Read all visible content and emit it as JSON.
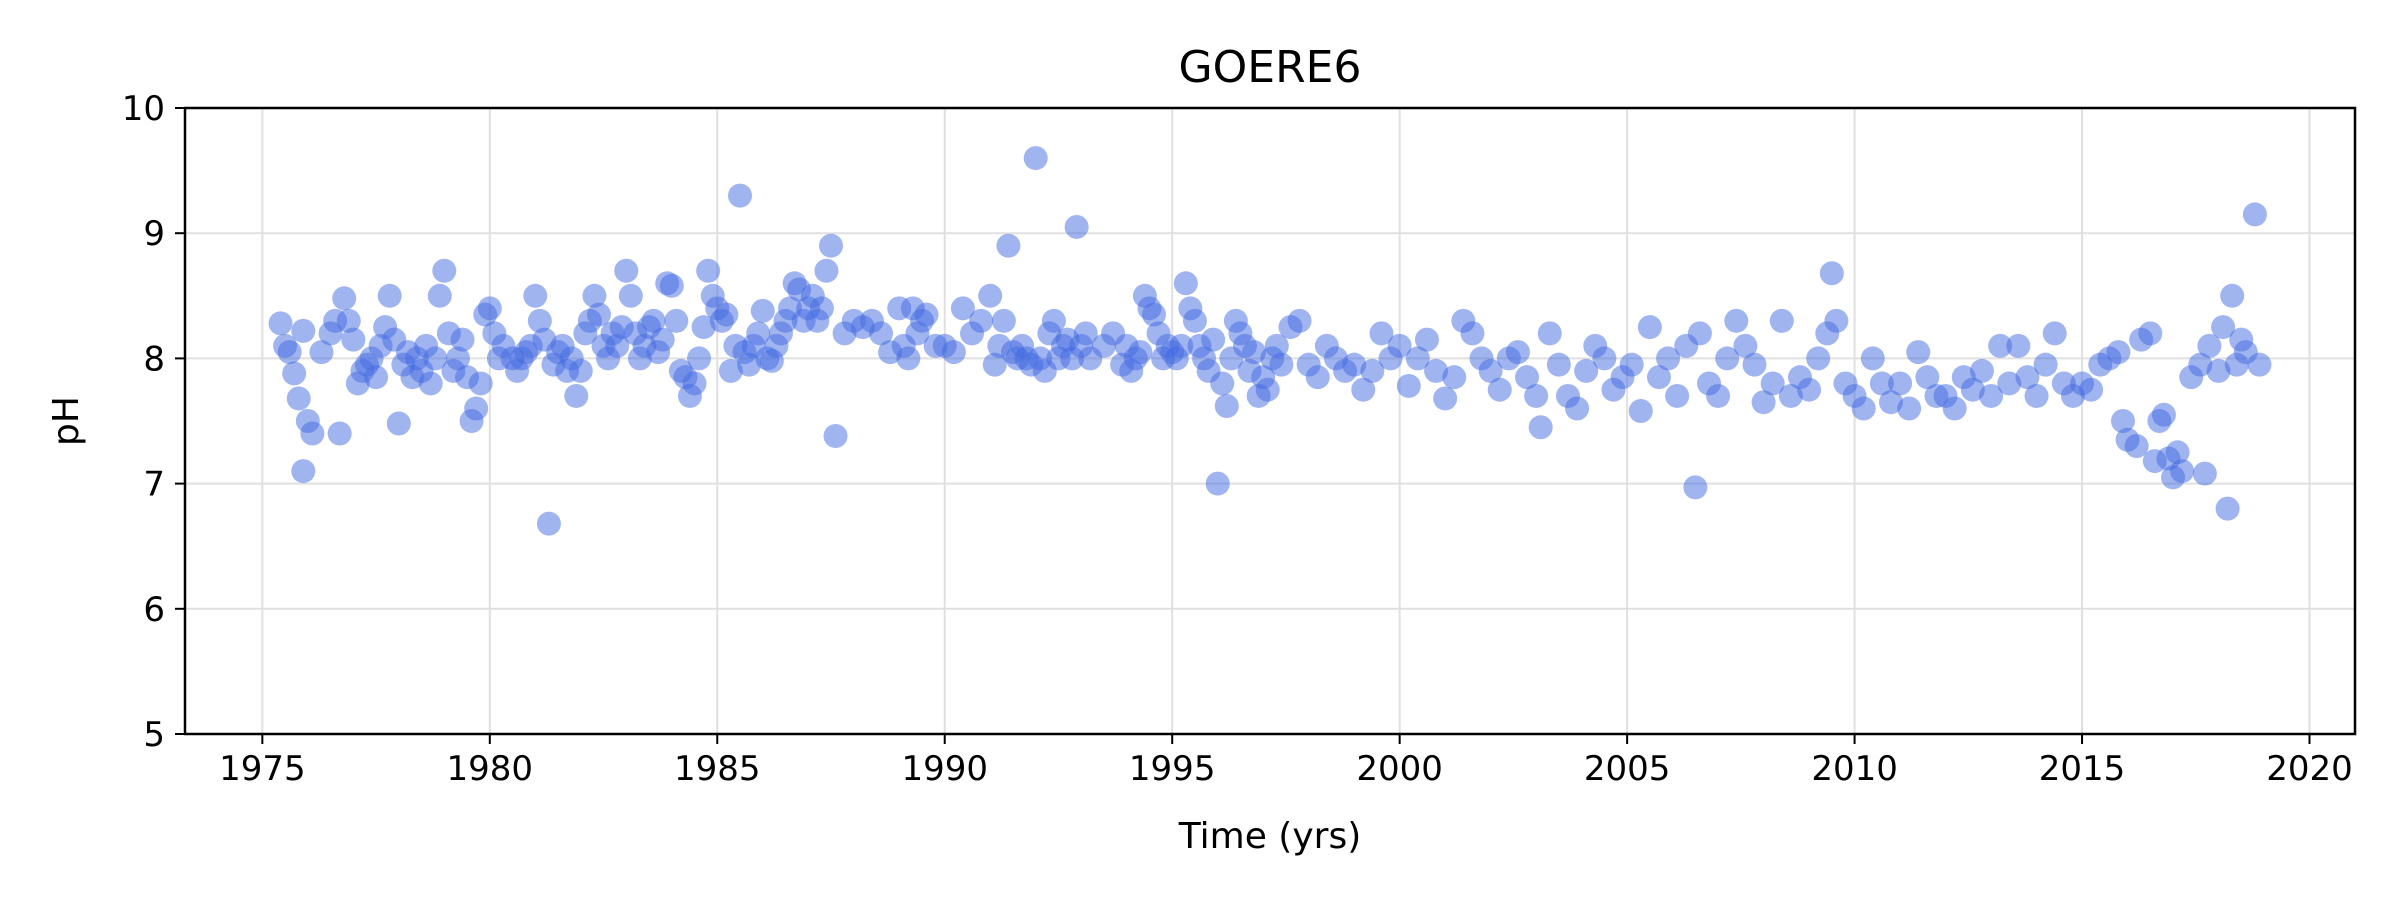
{
  "chart_data": {
    "type": "scatter",
    "title": "GOERE6",
    "xlabel": "Time (yrs)",
    "ylabel": "pH",
    "xlim": [
      1973.3,
      2021.0
    ],
    "ylim": [
      5,
      10
    ],
    "xticks": [
      1975,
      1980,
      1985,
      1990,
      1995,
      2000,
      2005,
      2010,
      2015,
      2020
    ],
    "yticks": [
      5,
      6,
      7,
      8,
      9,
      10
    ],
    "grid": true,
    "marker_color": "#4169e1",
    "marker_opacity": 0.5,
    "points": [
      [
        1975.4,
        8.28
      ],
      [
        1975.5,
        8.1
      ],
      [
        1975.6,
        8.05
      ],
      [
        1975.7,
        7.88
      ],
      [
        1975.8,
        7.68
      ],
      [
        1975.9,
        8.22
      ],
      [
        1976.0,
        7.5
      ],
      [
        1975.9,
        7.1
      ],
      [
        1976.1,
        7.4
      ],
      [
        1976.3,
        8.05
      ],
      [
        1976.5,
        8.2
      ],
      [
        1976.6,
        8.3
      ],
      [
        1976.7,
        7.4
      ],
      [
        1976.8,
        8.48
      ],
      [
        1976.9,
        8.3
      ],
      [
        1977.0,
        8.15
      ],
      [
        1977.1,
        7.8
      ],
      [
        1977.2,
        7.9
      ],
      [
        1977.3,
        7.95
      ],
      [
        1977.4,
        8.0
      ],
      [
        1977.5,
        7.85
      ],
      [
        1977.6,
        8.1
      ],
      [
        1977.7,
        8.25
      ],
      [
        1977.8,
        8.5
      ],
      [
        1977.9,
        8.15
      ],
      [
        1978.0,
        7.48
      ],
      [
        1978.1,
        7.95
      ],
      [
        1978.2,
        8.05
      ],
      [
        1978.3,
        7.85
      ],
      [
        1978.4,
        8.0
      ],
      [
        1978.5,
        7.9
      ],
      [
        1978.6,
        8.1
      ],
      [
        1978.7,
        7.8
      ],
      [
        1978.8,
        8.0
      ],
      [
        1978.9,
        8.5
      ],
      [
        1979.0,
        8.7
      ],
      [
        1979.1,
        8.2
      ],
      [
        1979.2,
        7.9
      ],
      [
        1979.3,
        8.0
      ],
      [
        1979.4,
        8.15
      ],
      [
        1979.5,
        7.85
      ],
      [
        1979.6,
        7.5
      ],
      [
        1979.7,
        7.6
      ],
      [
        1979.8,
        7.8
      ],
      [
        1979.9,
        8.35
      ],
      [
        1980.0,
        8.4
      ],
      [
        1980.1,
        8.2
      ],
      [
        1980.2,
        8.0
      ],
      [
        1980.3,
        8.1
      ],
      [
        1980.5,
        8.0
      ],
      [
        1980.6,
        7.9
      ],
      [
        1980.7,
        8.0
      ],
      [
        1980.8,
        8.05
      ],
      [
        1980.9,
        8.1
      ],
      [
        1981.0,
        8.5
      ],
      [
        1981.1,
        8.3
      ],
      [
        1981.2,
        8.15
      ],
      [
        1981.3,
        6.68
      ],
      [
        1981.4,
        7.95
      ],
      [
        1981.5,
        8.05
      ],
      [
        1981.6,
        8.1
      ],
      [
        1981.7,
        7.9
      ],
      [
        1981.8,
        8.0
      ],
      [
        1981.9,
        7.7
      ],
      [
        1982.0,
        7.9
      ],
      [
        1982.1,
        8.2
      ],
      [
        1982.2,
        8.3
      ],
      [
        1982.3,
        8.5
      ],
      [
        1982.4,
        8.35
      ],
      [
        1982.5,
        8.1
      ],
      [
        1982.6,
        8.0
      ],
      [
        1982.7,
        8.2
      ],
      [
        1982.8,
        8.1
      ],
      [
        1982.9,
        8.25
      ],
      [
        1983.0,
        8.7
      ],
      [
        1983.1,
        8.5
      ],
      [
        1983.2,
        8.2
      ],
      [
        1983.3,
        8.0
      ],
      [
        1983.4,
        8.1
      ],
      [
        1983.5,
        8.25
      ],
      [
        1983.6,
        8.3
      ],
      [
        1983.7,
        8.05
      ],
      [
        1983.8,
        8.15
      ],
      [
        1983.9,
        8.6
      ],
      [
        1984.0,
        8.58
      ],
      [
        1984.1,
        8.3
      ],
      [
        1984.2,
        7.9
      ],
      [
        1984.3,
        7.85
      ],
      [
        1984.4,
        7.7
      ],
      [
        1984.5,
        7.8
      ],
      [
        1984.6,
        8.0
      ],
      [
        1984.7,
        8.25
      ],
      [
        1984.8,
        8.7
      ],
      [
        1984.9,
        8.5
      ],
      [
        1985.0,
        8.4
      ],
      [
        1985.1,
        8.3
      ],
      [
        1985.2,
        8.35
      ],
      [
        1985.3,
        7.9
      ],
      [
        1985.4,
        8.1
      ],
      [
        1985.5,
        9.3
      ],
      [
        1985.6,
        8.05
      ],
      [
        1985.7,
        7.95
      ],
      [
        1985.8,
        8.1
      ],
      [
        1985.9,
        8.2
      ],
      [
        1986.0,
        8.38
      ],
      [
        1986.1,
        8.0
      ],
      [
        1986.2,
        7.98
      ],
      [
        1986.3,
        8.1
      ],
      [
        1986.4,
        8.2
      ],
      [
        1986.5,
        8.3
      ],
      [
        1986.6,
        8.4
      ],
      [
        1986.7,
        8.6
      ],
      [
        1986.8,
        8.55
      ],
      [
        1986.9,
        8.3
      ],
      [
        1987.0,
        8.4
      ],
      [
        1987.1,
        8.5
      ],
      [
        1987.2,
        8.3
      ],
      [
        1987.3,
        8.4
      ],
      [
        1987.4,
        8.7
      ],
      [
        1987.5,
        8.9
      ],
      [
        1987.6,
        7.38
      ],
      [
        1987.8,
        8.2
      ],
      [
        1988.0,
        8.3
      ],
      [
        1988.2,
        8.25
      ],
      [
        1988.4,
        8.3
      ],
      [
        1988.6,
        8.2
      ],
      [
        1988.8,
        8.05
      ],
      [
        1989.0,
        8.4
      ],
      [
        1989.1,
        8.1
      ],
      [
        1989.2,
        8.0
      ],
      [
        1989.3,
        8.4
      ],
      [
        1989.4,
        8.2
      ],
      [
        1989.5,
        8.3
      ],
      [
        1989.6,
        8.35
      ],
      [
        1989.8,
        8.1
      ],
      [
        1990.0,
        8.1
      ],
      [
        1990.2,
        8.05
      ],
      [
        1990.4,
        8.4
      ],
      [
        1990.6,
        8.2
      ],
      [
        1990.8,
        8.3
      ],
      [
        1991.0,
        8.5
      ],
      [
        1991.1,
        7.95
      ],
      [
        1991.2,
        8.1
      ],
      [
        1991.3,
        8.3
      ],
      [
        1991.4,
        8.9
      ],
      [
        1991.5,
        8.05
      ],
      [
        1991.6,
        8.0
      ],
      [
        1991.7,
        8.1
      ],
      [
        1991.8,
        8.0
      ],
      [
        1991.9,
        7.95
      ],
      [
        1992.0,
        9.6
      ],
      [
        1992.1,
        8.0
      ],
      [
        1992.2,
        7.9
      ],
      [
        1992.3,
        8.2
      ],
      [
        1992.4,
        8.3
      ],
      [
        1992.5,
        8.0
      ],
      [
        1992.6,
        8.1
      ],
      [
        1992.7,
        8.15
      ],
      [
        1992.8,
        8.0
      ],
      [
        1992.9,
        9.05
      ],
      [
        1993.0,
        8.1
      ],
      [
        1993.1,
        8.2
      ],
      [
        1993.2,
        8.0
      ],
      [
        1993.5,
        8.1
      ],
      [
        1993.7,
        8.2
      ],
      [
        1993.9,
        7.95
      ],
      [
        1994.0,
        8.1
      ],
      [
        1994.1,
        7.9
      ],
      [
        1994.2,
        8.0
      ],
      [
        1994.3,
        8.05
      ],
      [
        1994.4,
        8.5
      ],
      [
        1994.5,
        8.4
      ],
      [
        1994.6,
        8.35
      ],
      [
        1994.7,
        8.2
      ],
      [
        1994.8,
        8.0
      ],
      [
        1994.9,
        8.1
      ],
      [
        1995.0,
        8.05
      ],
      [
        1995.1,
        8.0
      ],
      [
        1995.2,
        8.1
      ],
      [
        1995.3,
        8.6
      ],
      [
        1995.4,
        8.4
      ],
      [
        1995.5,
        8.3
      ],
      [
        1995.6,
        8.1
      ],
      [
        1995.7,
        8.0
      ],
      [
        1995.8,
        7.9
      ],
      [
        1995.9,
        8.15
      ],
      [
        1996.0,
        7.0
      ],
      [
        1996.1,
        7.8
      ],
      [
        1996.2,
        7.62
      ],
      [
        1996.3,
        8.0
      ],
      [
        1996.4,
        8.3
      ],
      [
        1996.5,
        8.2
      ],
      [
        1996.6,
        8.1
      ],
      [
        1996.7,
        7.9
      ],
      [
        1996.8,
        8.05
      ],
      [
        1996.9,
        7.7
      ],
      [
        1997.0,
        7.85
      ],
      [
        1997.1,
        7.75
      ],
      [
        1997.2,
        8.0
      ],
      [
        1997.3,
        8.1
      ],
      [
        1997.4,
        7.95
      ],
      [
        1997.6,
        8.25
      ],
      [
        1997.8,
        8.3
      ],
      [
        1998.0,
        7.95
      ],
      [
        1998.2,
        7.85
      ],
      [
        1998.4,
        8.1
      ],
      [
        1998.6,
        8.0
      ],
      [
        1998.8,
        7.9
      ],
      [
        1999.0,
        7.95
      ],
      [
        1999.2,
        7.75
      ],
      [
        1999.4,
        7.9
      ],
      [
        1999.6,
        8.2
      ],
      [
        1999.8,
        8.0
      ],
      [
        2000.0,
        8.1
      ],
      [
        2000.2,
        7.78
      ],
      [
        2000.4,
        8.0
      ],
      [
        2000.6,
        8.15
      ],
      [
        2000.8,
        7.9
      ],
      [
        2001.0,
        7.68
      ],
      [
        2001.2,
        7.85
      ],
      [
        2001.4,
        8.3
      ],
      [
        2001.6,
        8.2
      ],
      [
        2001.8,
        8.0
      ],
      [
        2002.0,
        7.9
      ],
      [
        2002.2,
        7.75
      ],
      [
        2002.4,
        8.0
      ],
      [
        2002.6,
        8.05
      ],
      [
        2002.8,
        7.85
      ],
      [
        2003.0,
        7.7
      ],
      [
        2003.1,
        7.45
      ],
      [
        2003.3,
        8.2
      ],
      [
        2003.5,
        7.95
      ],
      [
        2003.7,
        7.7
      ],
      [
        2003.9,
        7.6
      ],
      [
        2004.1,
        7.9
      ],
      [
        2004.3,
        8.1
      ],
      [
        2004.5,
        8.0
      ],
      [
        2004.7,
        7.75
      ],
      [
        2004.9,
        7.85
      ],
      [
        2005.1,
        7.95
      ],
      [
        2005.3,
        7.58
      ],
      [
        2005.5,
        8.25
      ],
      [
        2005.7,
        7.85
      ],
      [
        2005.9,
        8.0
      ],
      [
        2006.1,
        7.7
      ],
      [
        2006.3,
        8.1
      ],
      [
        2006.5,
        6.97
      ],
      [
        2006.6,
        8.2
      ],
      [
        2006.8,
        7.8
      ],
      [
        2007.0,
        7.7
      ],
      [
        2007.2,
        8.0
      ],
      [
        2007.4,
        8.3
      ],
      [
        2007.6,
        8.1
      ],
      [
        2007.8,
        7.95
      ],
      [
        2008.0,
        7.65
      ],
      [
        2008.2,
        7.8
      ],
      [
        2008.4,
        8.3
      ],
      [
        2008.6,
        7.7
      ],
      [
        2008.8,
        7.85
      ],
      [
        2009.0,
        7.75
      ],
      [
        2009.2,
        8.0
      ],
      [
        2009.4,
        8.2
      ],
      [
        2009.5,
        8.68
      ],
      [
        2009.6,
        8.3
      ],
      [
        2009.8,
        7.8
      ],
      [
        2010.0,
        7.7
      ],
      [
        2010.2,
        7.6
      ],
      [
        2010.4,
        8.0
      ],
      [
        2010.6,
        7.8
      ],
      [
        2010.8,
        7.65
      ],
      [
        2011.0,
        7.8
      ],
      [
        2011.2,
        7.6
      ],
      [
        2011.4,
        8.05
      ],
      [
        2011.6,
        7.85
      ],
      [
        2011.8,
        7.7
      ],
      [
        2012.0,
        7.7
      ],
      [
        2012.2,
        7.6
      ],
      [
        2012.4,
        7.85
      ],
      [
        2012.6,
        7.75
      ],
      [
        2012.8,
        7.9
      ],
      [
        2013.0,
        7.7
      ],
      [
        2013.2,
        8.1
      ],
      [
        2013.4,
        7.8
      ],
      [
        2013.6,
        8.1
      ],
      [
        2013.8,
        7.85
      ],
      [
        2014.0,
        7.7
      ],
      [
        2014.2,
        7.95
      ],
      [
        2014.4,
        8.2
      ],
      [
        2014.6,
        7.8
      ],
      [
        2014.8,
        7.7
      ],
      [
        2015.0,
        7.8
      ],
      [
        2015.2,
        7.75
      ],
      [
        2015.4,
        7.95
      ],
      [
        2015.6,
        8.0
      ],
      [
        2015.8,
        8.05
      ],
      [
        2015.9,
        7.5
      ],
      [
        2016.0,
        7.35
      ],
      [
        2016.2,
        7.3
      ],
      [
        2016.3,
        8.15
      ],
      [
        2016.5,
        8.2
      ],
      [
        2016.6,
        7.18
      ],
      [
        2016.7,
        7.5
      ],
      [
        2016.8,
        7.55
      ],
      [
        2016.9,
        7.2
      ],
      [
        2017.0,
        7.05
      ],
      [
        2017.1,
        7.25
      ],
      [
        2017.2,
        7.1
      ],
      [
        2017.4,
        7.85
      ],
      [
        2017.6,
        7.95
      ],
      [
        2017.7,
        7.08
      ],
      [
        2017.8,
        8.1
      ],
      [
        2018.0,
        7.9
      ],
      [
        2018.1,
        8.25
      ],
      [
        2018.2,
        6.8
      ],
      [
        2018.3,
        8.5
      ],
      [
        2018.4,
        7.95
      ],
      [
        2018.5,
        8.15
      ],
      [
        2018.6,
        8.05
      ],
      [
        2018.8,
        9.15
      ],
      [
        2018.9,
        7.95
      ]
    ]
  }
}
